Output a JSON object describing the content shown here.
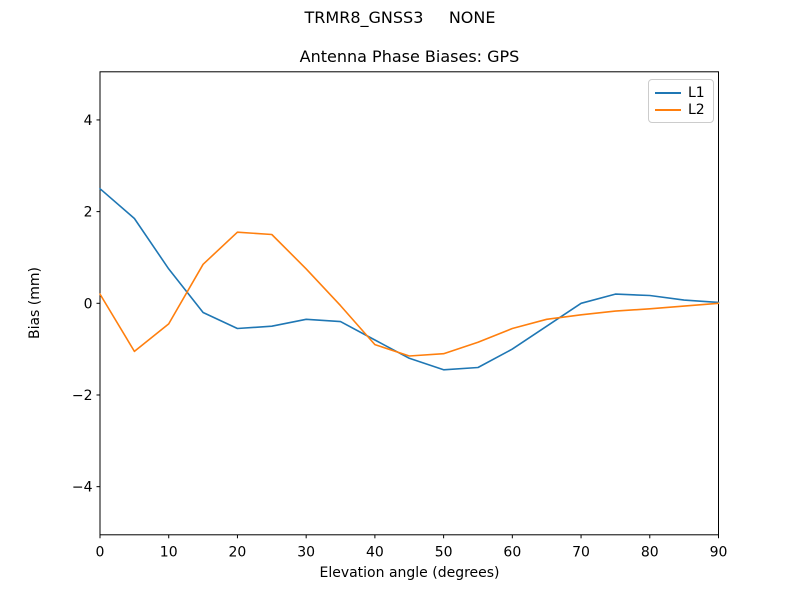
{
  "figure": {
    "suptitle": "TRMR8_GNSS3     NONE",
    "background_color": "#ffffff",
    "axis_color": "#000000",
    "legend_border_color": "#cccccc"
  },
  "chart_data": {
    "type": "line",
    "title": "Antenna Phase Biases: GPS",
    "xlabel": "Elevation angle (degrees)",
    "ylabel": "Bias (mm)",
    "xlim": [
      0,
      90
    ],
    "ylim": [
      -5.05,
      5.05
    ],
    "grid": false,
    "legend_position": "upper right",
    "xticks": {
      "values": [
        0,
        10,
        20,
        30,
        40,
        50,
        60,
        70,
        80,
        90
      ],
      "labels": [
        "0",
        "10",
        "20",
        "30",
        "40",
        "50",
        "60",
        "70",
        "80",
        "90"
      ]
    },
    "yticks": {
      "values": [
        -4,
        -2,
        0,
        2,
        4
      ],
      "labels": [
        "−4",
        "−2",
        "0",
        "2",
        "4"
      ]
    },
    "x": [
      0,
      5,
      10,
      15,
      20,
      25,
      30,
      35,
      40,
      45,
      50,
      55,
      60,
      65,
      70,
      75,
      80,
      85,
      90
    ],
    "series": [
      {
        "name": "L1",
        "color": "#1f77b4",
        "values": [
          2.5,
          1.85,
          0.75,
          -0.2,
          -0.55,
          -0.5,
          -0.35,
          -0.4,
          -0.8,
          -1.2,
          -1.45,
          -1.4,
          -1.0,
          -0.5,
          0.0,
          0.2,
          0.17,
          0.07,
          0.02
        ]
      },
      {
        "name": "L2",
        "color": "#ff7f0e",
        "values": [
          0.2,
          -1.05,
          -0.45,
          0.85,
          1.55,
          1.5,
          0.75,
          -0.05,
          -0.9,
          -1.15,
          -1.1,
          -0.85,
          -0.55,
          -0.35,
          -0.25,
          -0.17,
          -0.12,
          -0.06,
          0.0
        ]
      }
    ]
  }
}
